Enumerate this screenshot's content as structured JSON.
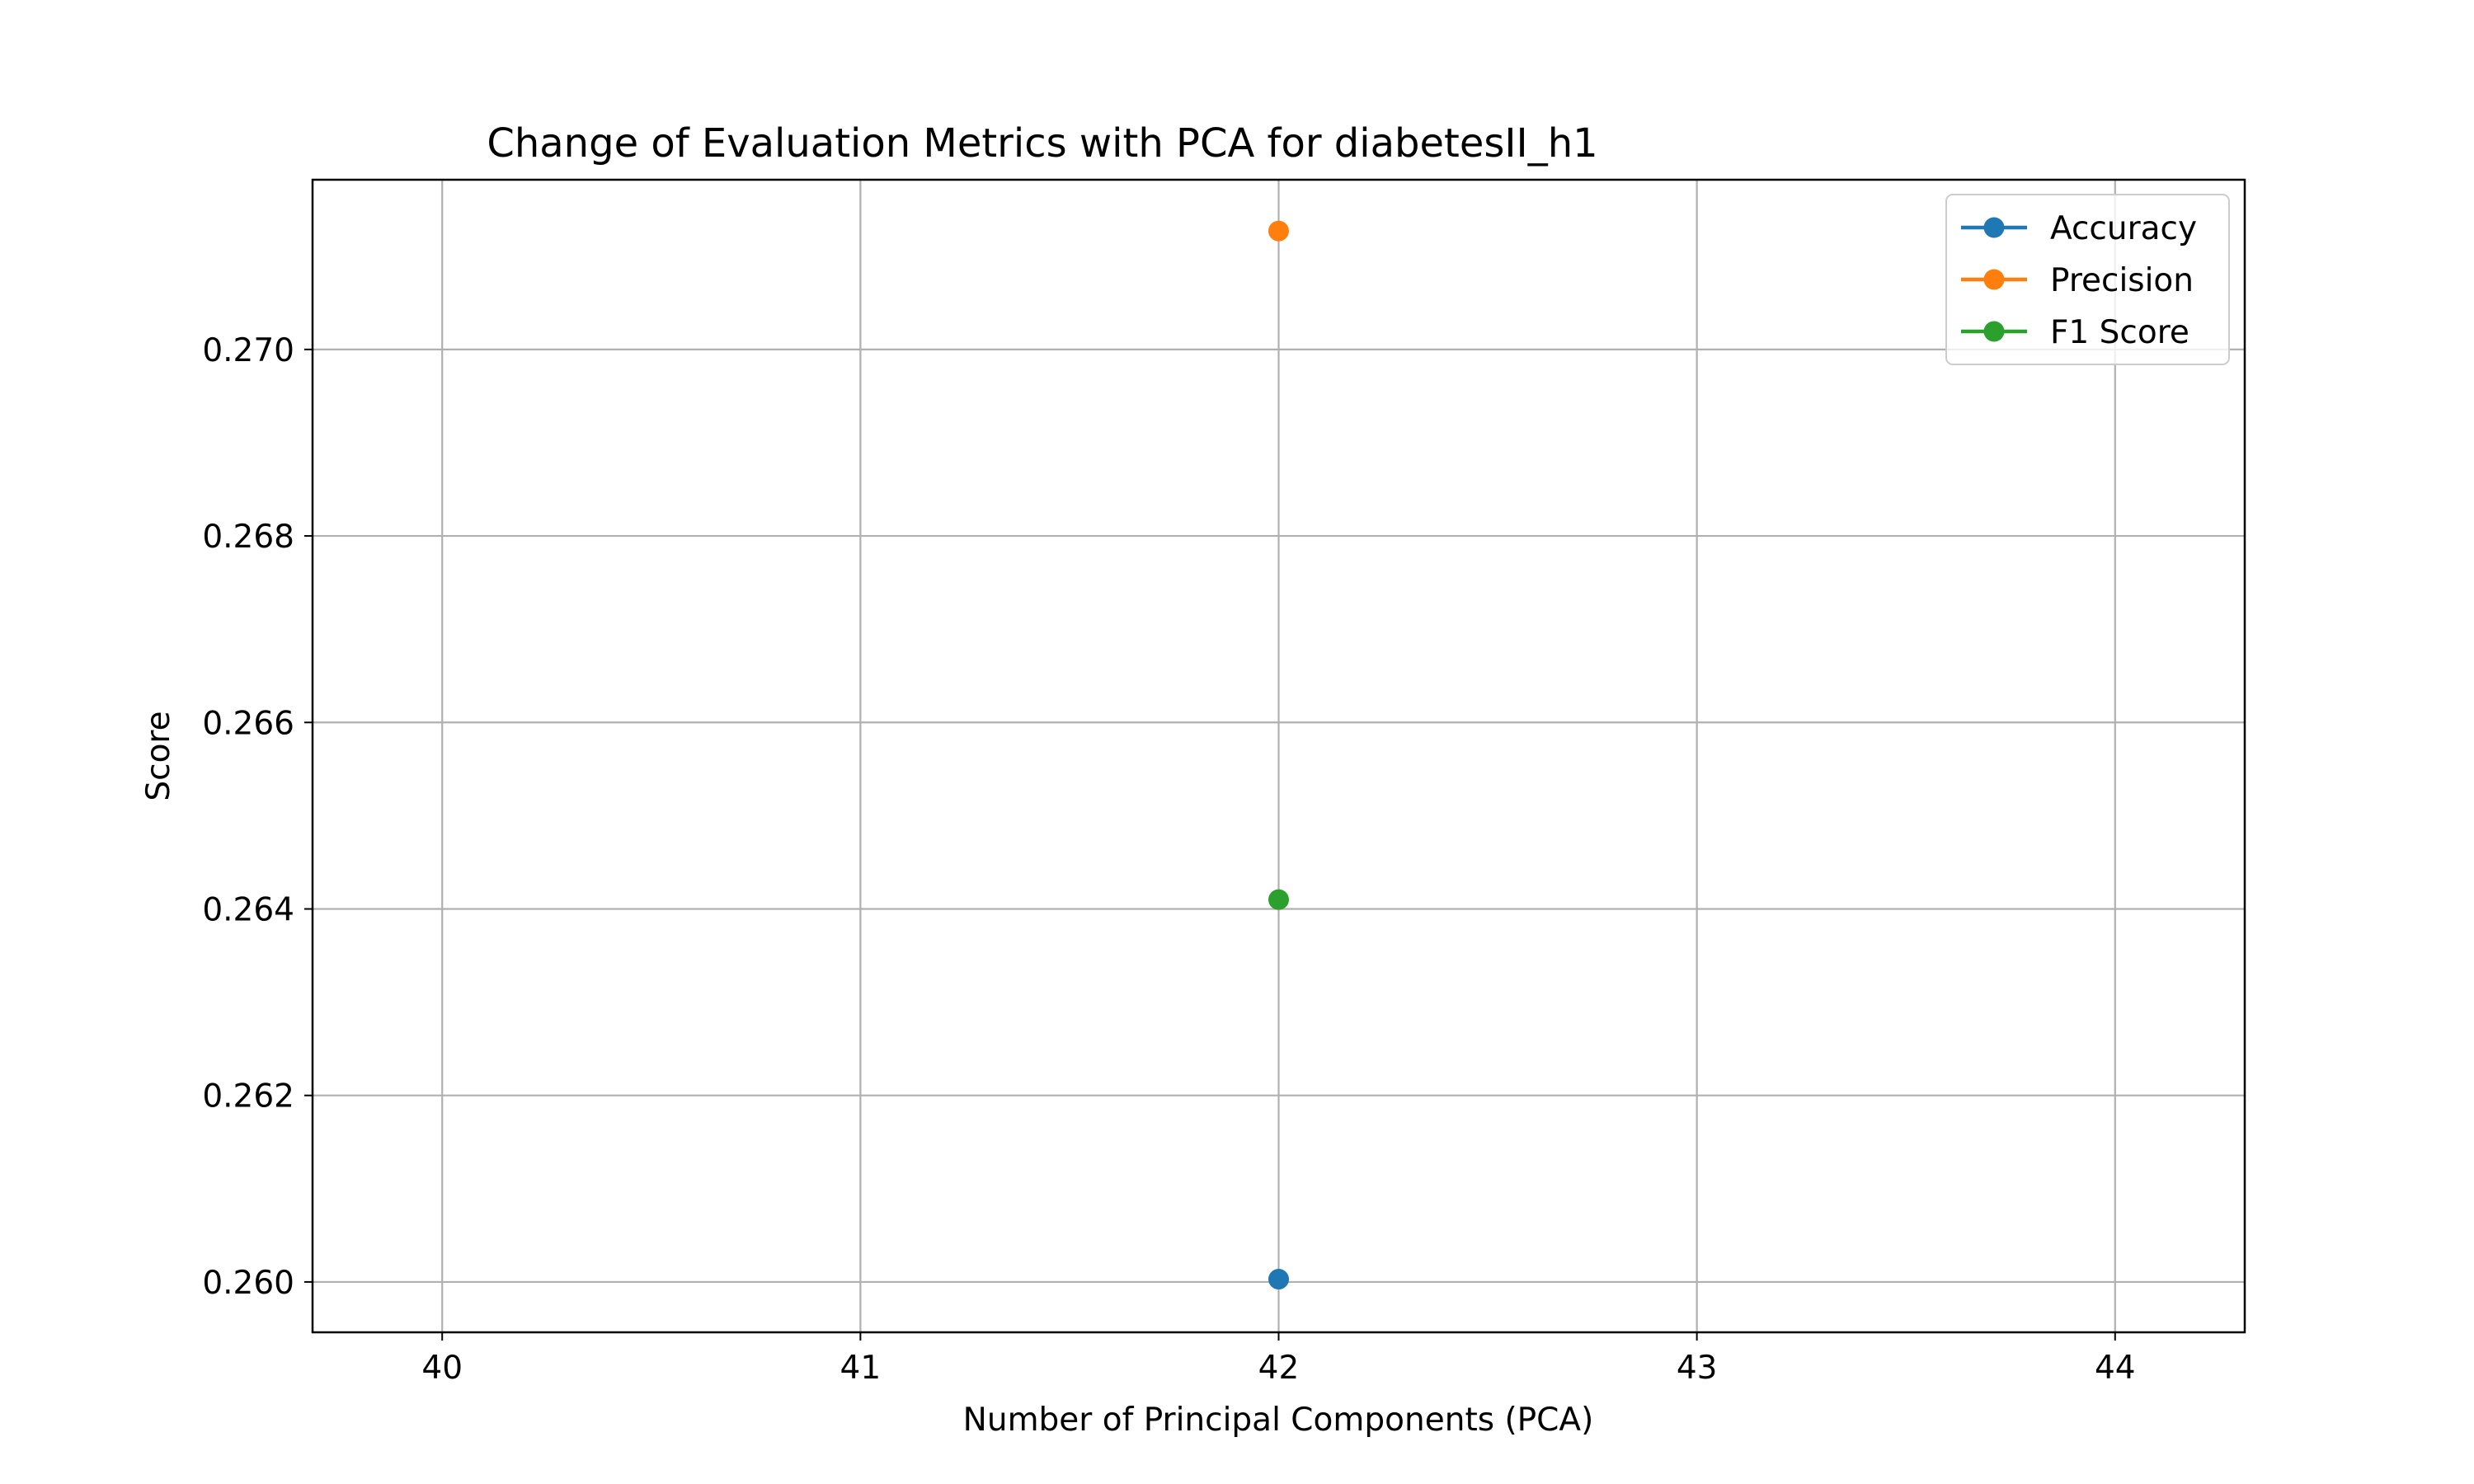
{
  "chart_data": {
    "type": "line",
    "title": "Change of Evaluation Metrics with PCA for diabetesII_h1",
    "xlabel": "Number of Principal Components (PCA)",
    "ylabel": "Score",
    "x": [
      42
    ],
    "xlim": [
      39.69,
      44.31
    ],
    "ylim": [
      0.25946,
      0.27182
    ],
    "xticks": [
      40,
      41,
      42,
      43,
      44
    ],
    "xtick_labels": [
      "40",
      "41",
      "42",
      "43",
      "44"
    ],
    "yticks": [
      0.26,
      0.262,
      0.264,
      0.266,
      0.268,
      0.27
    ],
    "ytick_labels": [
      "0.260",
      "0.262",
      "0.264",
      "0.266",
      "0.268",
      "0.270"
    ],
    "grid": true,
    "legend_position": "upper right",
    "series": [
      {
        "name": "Accuracy",
        "values": [
          0.26003
        ],
        "color": "#1f77b4",
        "marker": "circle"
      },
      {
        "name": "Precision",
        "values": [
          0.27127
        ],
        "color": "#ff7f0e",
        "marker": "circle"
      },
      {
        "name": "F1 Score",
        "values": [
          0.2641
        ],
        "color": "#2ca02c",
        "marker": "circle"
      }
    ]
  }
}
